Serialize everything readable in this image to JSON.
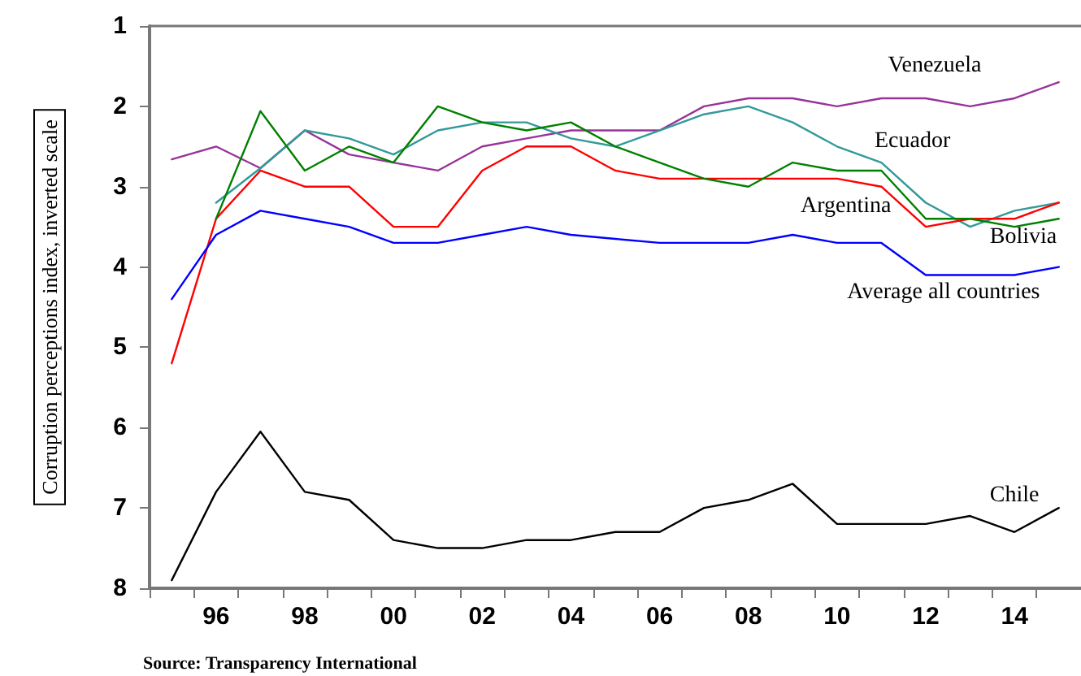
{
  "chart_data": {
    "type": "line",
    "ylabel": "Corruption perceptions index, inverted scale",
    "categories": [
      null,
      "96",
      null,
      "98",
      null,
      "00",
      null,
      "02",
      null,
      "04",
      null,
      "06",
      null,
      "08",
      null,
      "10",
      null,
      "12",
      null,
      "14",
      null
    ],
    "ylim": [
      8,
      1
    ],
    "yticks": [
      1,
      2,
      3,
      4,
      5,
      6,
      7,
      8
    ],
    "marker": "none",
    "line_style": "solid",
    "annotations": [
      "Source: Transparency International"
    ],
    "series": [
      {
        "name": "Venezuela",
        "color": "#993399",
        "values": [
          2.66,
          2.5,
          2.77,
          2.3,
          2.6,
          2.7,
          2.8,
          2.5,
          2.4,
          2.3,
          2.3,
          2.3,
          2.0,
          1.9,
          1.9,
          2.0,
          1.9,
          1.9,
          2.0,
          1.9,
          1.7
        ]
      },
      {
        "name": "Ecuador",
        "color": "#339999",
        "values": [
          null,
          3.2,
          2.77,
          2.3,
          2.4,
          2.6,
          2.3,
          2.2,
          2.2,
          2.4,
          2.5,
          2.3,
          2.1,
          2.0,
          2.2,
          2.5,
          2.7,
          3.2,
          3.5,
          3.3,
          3.2
        ]
      },
      {
        "name": "Argentina",
        "color": "#ff0000",
        "values": [
          5.2,
          3.4,
          2.8,
          3.0,
          3.0,
          3.5,
          3.5,
          2.8,
          2.5,
          2.5,
          2.8,
          2.9,
          2.9,
          2.9,
          2.9,
          2.9,
          3.0,
          3.5,
          3.4,
          3.4,
          3.2
        ]
      },
      {
        "name": "Bolivia",
        "color": "#008000",
        "values": [
          null,
          3.4,
          2.06,
          2.8,
          2.5,
          2.7,
          2.0,
          2.2,
          2.3,
          2.2,
          2.5,
          2.7,
          2.9,
          3.0,
          2.7,
          2.8,
          2.8,
          3.4,
          3.4,
          3.5,
          3.4
        ]
      },
      {
        "name": "Average all countries",
        "color": "#0000ff",
        "values": [
          4.4,
          3.6,
          3.3,
          3.4,
          3.5,
          3.7,
          3.7,
          3.6,
          3.5,
          3.6,
          3.65,
          3.7,
          3.7,
          3.7,
          3.6,
          3.7,
          3.7,
          4.1,
          4.1,
          4.1,
          4.0
        ]
      },
      {
        "name": "Chile",
        "color": "#000000",
        "values": [
          7.9,
          6.8,
          6.05,
          6.8,
          6.9,
          7.4,
          7.5,
          7.5,
          7.4,
          7.4,
          7.3,
          7.3,
          7.0,
          6.9,
          6.7,
          7.2,
          7.2,
          7.2,
          7.1,
          7.3,
          7.0
        ]
      }
    ]
  }
}
